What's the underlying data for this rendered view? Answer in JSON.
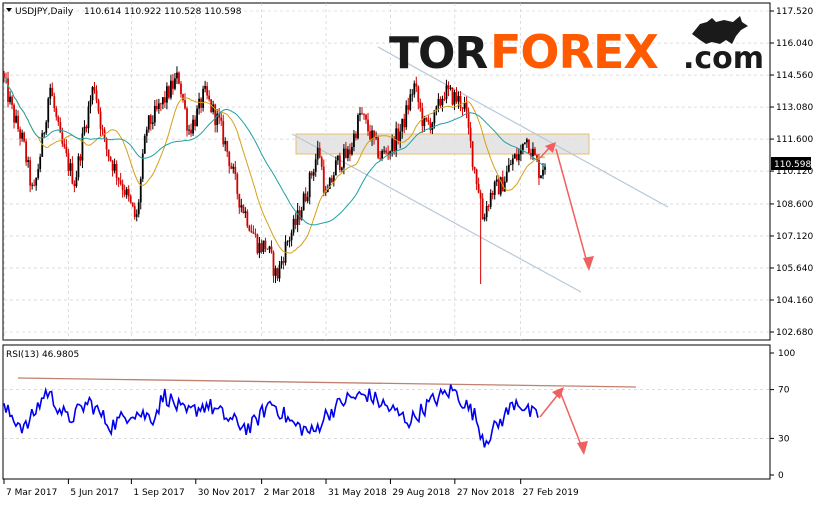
{
  "header": {
    "symbol_label": "USDJPY,Daily",
    "ohlc": "110.614 110.922 110.528 110.598"
  },
  "logo": {
    "part1": "TOR",
    "part2": "FOREX",
    "part3": ".com"
  },
  "colors": {
    "bull_candle": "#000000",
    "bear_candle": "#d40000",
    "ma_fast": "#d4a017",
    "ma_slow": "#20a0a0",
    "rsi_line": "#0000ee",
    "channel": "#b8c8d8",
    "zone_fill": "#e0e0e0",
    "zone_border": "#e8c070",
    "arrow": "#f06060",
    "rsi_trend": "#c08070",
    "logo_dark": "#1a1a1a",
    "logo_accent": "#ff5a00"
  },
  "chart_data": [
    {
      "type": "candlestick",
      "symbol": "USDJPY",
      "timeframe": "Daily",
      "ylim": [
        102.68,
        117.52
      ],
      "yticks": [
        "117.520",
        "116.040",
        "114.560",
        "113.080",
        "111.600",
        "110.120",
        "108.600",
        "107.120",
        "105.640",
        "104.160",
        "102.680"
      ],
      "current_price": "110.598",
      "xticks": [
        "7 Mar 2017",
        "5 Jun 2017",
        "1 Sep 2017",
        "30 Nov 2017",
        "2 Mar 2018",
        "31 May 2018",
        "29 Aug 2018",
        "27 Nov 2018",
        "27 Feb 2019"
      ],
      "close_path": [
        [
          "2017-03-07",
          114.3
        ],
        [
          "2017-03-20",
          112.7
        ],
        [
          "2017-04-03",
          111.4
        ],
        [
          "2017-04-17",
          108.9
        ],
        [
          "2017-05-01",
          111.8
        ],
        [
          "2017-05-10",
          114.1
        ],
        [
          "2017-05-24",
          111.6
        ],
        [
          "2017-06-05",
          110.4
        ],
        [
          "2017-06-14",
          109.6
        ],
        [
          "2017-06-28",
          112.2
        ],
        [
          "2017-07-11",
          114.2
        ],
        [
          "2017-07-25",
          111.4
        ],
        [
          "2017-08-08",
          110.3
        ],
        [
          "2017-08-22",
          109.3
        ],
        [
          "2017-09-08",
          107.8
        ],
        [
          "2017-09-22",
          112.1
        ],
        [
          "2017-10-06",
          112.8
        ],
        [
          "2017-10-20",
          113.6
        ],
        [
          "2017-11-06",
          114.5
        ],
        [
          "2017-11-20",
          112.0
        ],
        [
          "2017-11-30",
          112.6
        ],
        [
          "2017-12-12",
          113.7
        ],
        [
          "2018-01-02",
          112.3
        ],
        [
          "2018-01-15",
          110.8
        ],
        [
          "2018-01-29",
          108.9
        ],
        [
          "2018-02-12",
          107.8
        ],
        [
          "2018-02-26",
          106.6
        ],
        [
          "2018-03-09",
          106.7
        ],
        [
          "2018-03-23",
          105.2
        ],
        [
          "2018-04-06",
          106.8
        ],
        [
          "2018-04-20",
          107.8
        ],
        [
          "2018-05-04",
          109.2
        ],
        [
          "2018-05-21",
          111.2
        ],
        [
          "2018-05-31",
          108.8
        ],
        [
          "2018-06-15",
          110.5
        ],
        [
          "2018-07-02",
          110.9
        ],
        [
          "2018-07-18",
          112.8
        ],
        [
          "2018-08-01",
          111.8
        ],
        [
          "2018-08-15",
          110.8
        ],
        [
          "2018-08-29",
          111.2
        ],
        [
          "2018-09-14",
          112.1
        ],
        [
          "2018-10-01",
          114.1
        ],
        [
          "2018-10-15",
          112.2
        ],
        [
          "2018-10-29",
          112.5
        ],
        [
          "2018-11-12",
          113.8
        ],
        [
          "2018-11-27",
          113.5
        ],
        [
          "2018-12-10",
          113.2
        ],
        [
          "2018-12-24",
          110.3
        ],
        [
          "2019-01-02",
          108.9
        ],
        [
          "2019-01-03",
          107.8
        ],
        [
          "2019-01-18",
          109.2
        ],
        [
          "2019-02-01",
          109.5
        ],
        [
          "2019-02-15",
          110.6
        ],
        [
          "2019-02-27",
          110.9
        ],
        [
          "2019-03-05",
          111.8
        ],
        [
          "2019-03-12",
          111.3
        ],
        [
          "2019-03-20",
          110.6
        ],
        [
          "2019-03-26",
          110.0
        ],
        [
          "2019-04-02",
          110.6
        ]
      ]
    },
    {
      "type": "line",
      "indicator": "RSI",
      "label": "RSI(13) 46.9805",
      "ylim": [
        0,
        100
      ],
      "yticks": [
        "100",
        "70",
        "30",
        "0"
      ],
      "levels": [
        70,
        30
      ],
      "path": [
        [
          0.0,
          54
        ],
        [
          0.04,
          38
        ],
        [
          0.08,
          69
        ],
        [
          0.12,
          45
        ],
        [
          0.16,
          60
        ],
        [
          0.2,
          40
        ],
        [
          0.24,
          52
        ],
        [
          0.28,
          47
        ],
        [
          0.3,
          66
        ],
        [
          0.34,
          50
        ],
        [
          0.38,
          58
        ],
        [
          0.42,
          46
        ],
        [
          0.46,
          38
        ],
        [
          0.5,
          60
        ],
        [
          0.54,
          42
        ],
        [
          0.58,
          34
        ],
        [
          0.6,
          48
        ],
        [
          0.64,
          62
        ],
        [
          0.68,
          66
        ],
        [
          0.72,
          55
        ],
        [
          0.76,
          44
        ],
        [
          0.8,
          60
        ],
        [
          0.84,
          70
        ],
        [
          0.88,
          50
        ],
        [
          0.9,
          28
        ],
        [
          0.93,
          44
        ],
        [
          0.96,
          62
        ],
        [
          0.98,
          52
        ],
        [
          1.0,
          47
        ]
      ]
    }
  ]
}
